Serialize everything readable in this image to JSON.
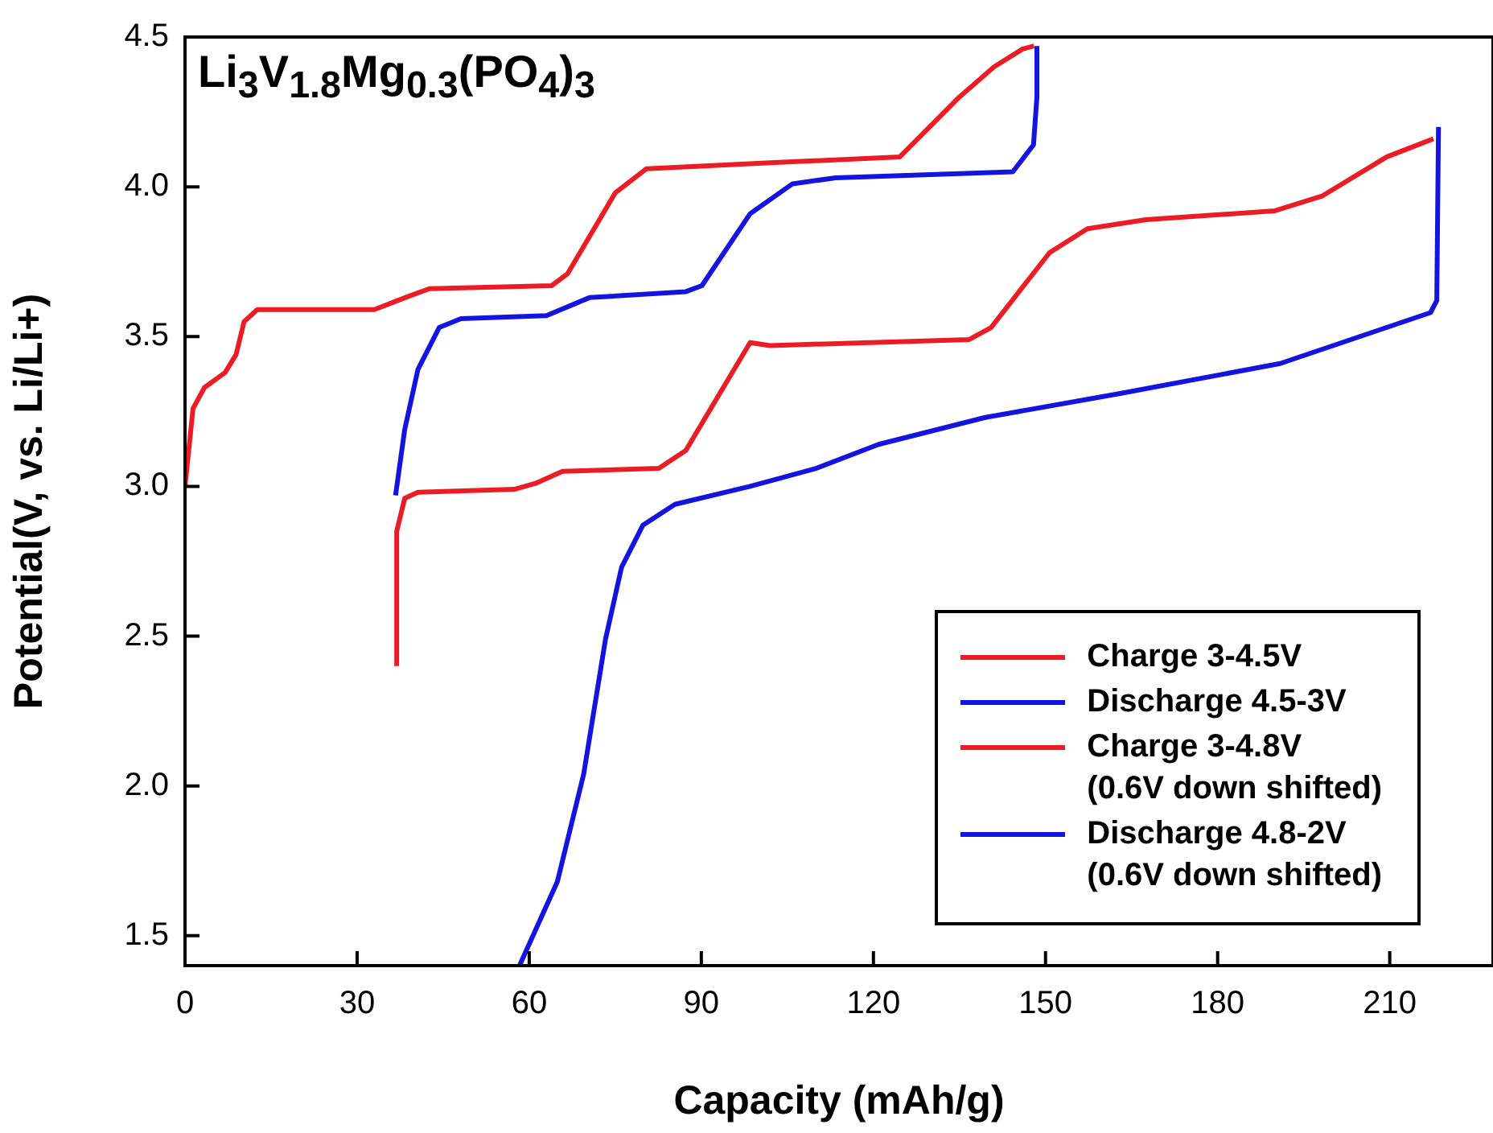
{
  "chart_data": {
    "type": "line",
    "title": "Li$_{3}$V$_{1.8}$Mg$_{0.3}$(PO$_{4}$)$_{3}$",
    "xlabel": "Capacity (mAh/g)",
    "ylabel": "Potential(V, vs. Li/Li+)",
    "xlim": [
      0,
      228
    ],
    "xticks": [
      0,
      30,
      60,
      90,
      120,
      150,
      180,
      210
    ],
    "ylim": [
      1.4,
      4.5
    ],
    "yticks": [
      1.5,
      {
        "value": 2,
        "label": "2.0"
      },
      2.5,
      {
        "value": 3,
        "label": "3.0"
      },
      3.5,
      {
        "value": 4,
        "label": "4.0"
      },
      4.5
    ],
    "legend": "bottom right",
    "series": [
      {
        "name": "Charge 3-4.5V",
        "color": "#ec1c24",
        "x": [
          0,
          1.4,
          3.4,
          7.0,
          8.9,
          10.3,
          12.6,
          33,
          37,
          42.6,
          63.9,
          66.7,
          75,
          80.4,
          102,
          124.6,
          135,
          141,
          146,
          148
        ],
        "values": [
          3.0,
          3.26,
          3.33,
          3.38,
          3.44,
          3.55,
          3.59,
          3.59,
          3.62,
          3.66,
          3.67,
          3.71,
          3.98,
          4.06,
          4.08,
          4.1,
          4.3,
          4.4,
          4.46,
          4.47
        ]
      },
      {
        "name": "Discharge 4.5-3V",
        "color": "#1414e0",
        "x": [
          36.7,
          38.3,
          40.6,
          44.3,
          48.1,
          63,
          70.5,
          87.3,
          90.1,
          98.5,
          105.9,
          113.4,
          144.3,
          147.9,
          148.5,
          148.5
        ],
        "values": [
          2.97,
          3.19,
          3.39,
          3.53,
          3.56,
          3.57,
          3.63,
          3.65,
          3.67,
          3.91,
          4.01,
          4.03,
          4.05,
          4.14,
          4.3,
          4.47
        ]
      },
      {
        "name": "Charge 3-4.8V\n(0.6V down shifted)",
        "color": "#ec1c24",
        "x": [
          36.9,
          36.9,
          38.3,
          40.6,
          57.4,
          61.1,
          65.8,
          82.6,
          87.3,
          98.5,
          102,
          136.7,
          140.5,
          150.7,
          157.3,
          167.5,
          190,
          198.3,
          209.5,
          217.6
        ],
        "values": [
          2.4,
          2.85,
          2.96,
          2.98,
          2.99,
          3.01,
          3.05,
          3.06,
          3.12,
          3.48,
          3.47,
          3.49,
          3.53,
          3.78,
          3.86,
          3.89,
          3.92,
          3.97,
          4.1,
          4.16
        ]
      },
      {
        "name": "Discharge 4.8-2V\n(0.6V down shifted)",
        "color": "#1414e0",
        "x": [
          58.3,
          64.9,
          69.5,
          73.3,
          76.1,
          79.8,
          85.4,
          98.5,
          110,
          120.9,
          139.5,
          163,
          190.9,
          217.1,
          218.2,
          218.5
        ],
        "values": [
          1.4,
          1.68,
          2.04,
          2.49,
          2.73,
          2.87,
          2.94,
          3.0,
          3.06,
          3.14,
          3.23,
          3.31,
          3.41,
          3.58,
          3.62,
          4.2
        ]
      }
    ]
  }
}
